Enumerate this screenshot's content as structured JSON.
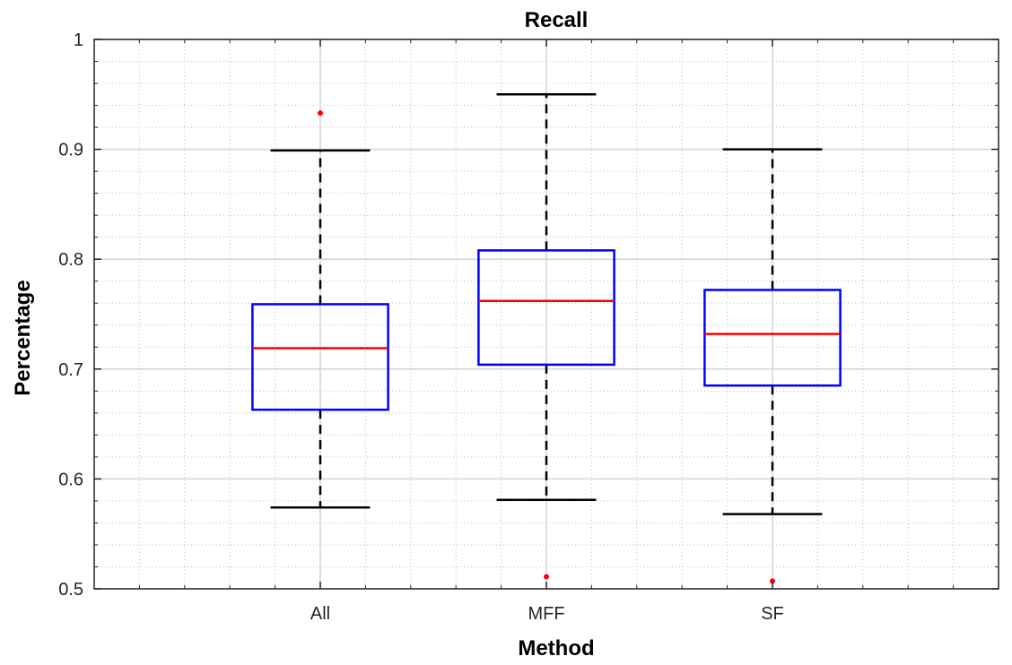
{
  "chart_data": {
    "type": "boxplot",
    "title": "Recall",
    "xlabel": "Method",
    "ylabel": "Percentage",
    "ylim": [
      0.5,
      1.0
    ],
    "yticks": [
      "0.5",
      "0.6",
      "0.7",
      "0.8",
      "0.9",
      "1"
    ],
    "grid": true,
    "minor_grid": true,
    "categories": [
      "All",
      "MFF",
      "SF"
    ],
    "boxes": [
      {
        "category": "All",
        "whisker_low": 0.574,
        "q1": 0.663,
        "median": 0.719,
        "q3": 0.759,
        "whisker_high": 0.899,
        "outliers": [
          0.933
        ]
      },
      {
        "category": "MFF",
        "whisker_low": 0.581,
        "q1": 0.704,
        "median": 0.762,
        "q3": 0.808,
        "whisker_high": 0.95,
        "outliers": [
          0.511
        ]
      },
      {
        "category": "SF",
        "whisker_low": 0.568,
        "q1": 0.685,
        "median": 0.732,
        "q3": 0.772,
        "whisker_high": 0.9,
        "outliers": [
          0.507
        ]
      }
    ],
    "colors": {
      "box": "#0000ff",
      "median": "#ff0000",
      "whisker": "#000000",
      "outlier": "#ff0000",
      "grid_major": "#d4d4d4",
      "grid_minor": "#bdbdbd",
      "axis": "#262626"
    }
  }
}
